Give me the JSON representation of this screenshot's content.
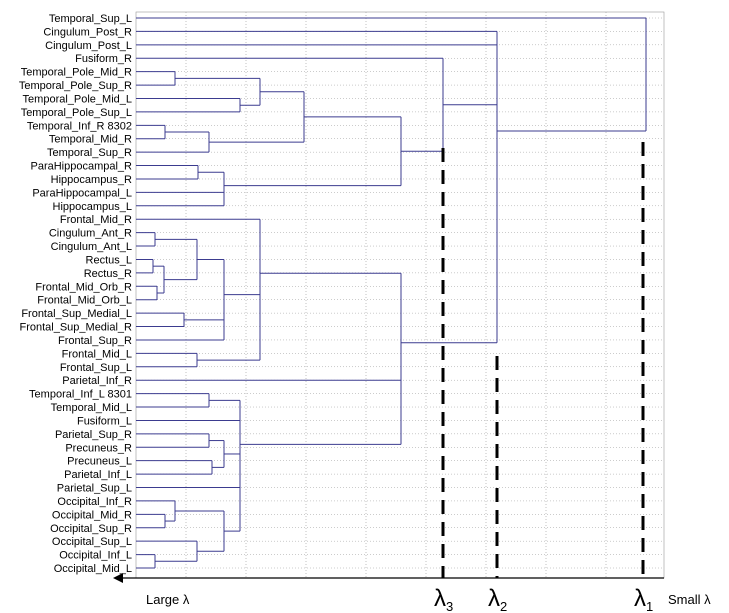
{
  "chart_data": {
    "type": "dendrogram",
    "orientation": "left-to-right",
    "x_axis": {
      "left_label": "Large λ",
      "right_label": "Small λ",
      "arrow": "left",
      "grid": true
    },
    "leaves": [
      "Temporal_Sup_L",
      "Cingulum_Post_R",
      "Cingulum_Post_L",
      "Fusiform_R",
      "Temporal_Pole_Mid_R",
      "Temporal_Pole_Sup_R",
      "Temporal_Pole_Mid_L",
      "Temporal_Pole_Sup_L",
      "Temporal_Inf_R 8302",
      "Temporal_Mid_R",
      "Temporal_Sup_R",
      "ParaHippocampal_R",
      "Hippocampus_R",
      "ParaHippocampal_L",
      "Hippocampus_L",
      "Frontal_Mid_R",
      "Cingulum_Ant_R",
      "Cingulum_Ant_L",
      "Rectus_L",
      "Rectus_R",
      "Frontal_Mid_Orb_R",
      "Frontal_Mid_Orb_L",
      "Frontal_Sup_Medial_L",
      "Frontal_Sup_Medial_R",
      "Frontal_Sup_R",
      "Frontal_Mid_L",
      "Frontal_Sup_L",
      "Parietal_Inf_R",
      "Temporal_Inf_L 8301",
      "Temporal_Mid_L",
      "Fusiform_L",
      "Parietal_Sup_R",
      "Precuneus_R",
      "Precuneus_L",
      "Parietal_Inf_L",
      "Parietal_Sup_L",
      "Occipital_Inf_R",
      "Occipital_Mid_R",
      "Occipital_Sup_R",
      "Occipital_Sup_L",
      "Occipital_Inf_L",
      "Occipital_Mid_L"
    ],
    "merges": [
      {
        "children": [
          "Temporal_Pole_Mid_R",
          "Temporal_Pole_Sup_R"
        ],
        "height": 0.07
      },
      {
        "children": [
          "Temporal_Pole_Mid_L",
          "Temporal_Pole_Sup_L"
        ],
        "height": 0.14
      },
      {
        "children": [
          "Temporal_Inf_R 8302",
          "Temporal_Mid_R"
        ],
        "height": 0.07
      },
      {
        "children": [
          "ParaHippocampal_R",
          "Hippocampus_R"
        ],
        "height": 0.07
      },
      {
        "children": [
          "ParaHippocampal_L",
          "Hippocampus_L"
        ],
        "height": 0.12
      },
      {
        "children": [
          "Cingulum_Ant_R",
          "Cingulum_Ant_L"
        ],
        "height": 0.0
      },
      {
        "children": [
          "Rectus_L",
          "Rectus_R"
        ],
        "height": 0.0
      },
      {
        "children": [
          "Frontal_Mid_Orb_R",
          "Frontal_Mid_Orb_L"
        ],
        "height": 0.0
      },
      {
        "children": [
          "Frontal_Sup_Medial_L",
          "Frontal_Sup_Medial_R"
        ],
        "height": 0.05
      },
      {
        "children": [
          "Frontal_Mid_L",
          "Frontal_Sup_L"
        ],
        "height": 0.08
      },
      {
        "children": [
          "Temporal_Inf_L 8301",
          "Temporal_Mid_L"
        ],
        "height": 0.1
      },
      {
        "children": [
          "Parietal_Sup_R",
          "Precuneus_R"
        ],
        "height": 0.12
      },
      {
        "children": [
          "Precuneus_L",
          "Parietal_Inf_L"
        ],
        "height": 0.11
      },
      {
        "children": [
          "Occipital_Mid_R",
          "Occipital_Sup_R"
        ],
        "height": 0.04
      },
      {
        "children": [
          "Occipital_Inf_L",
          "Occipital_Mid_L"
        ],
        "height": 0.0
      }
    ],
    "cut_markers": [
      {
        "label": "λ",
        "subscript": "3",
        "dashed": true
      },
      {
        "label": "λ",
        "subscript": "2",
        "dashed": true
      },
      {
        "label": "λ",
        "subscript": "1",
        "dashed": true
      }
    ],
    "colors": {
      "tree": "#3b3b8f",
      "grid": "#9a9a9a",
      "axis": "#000000",
      "markers": "#000000"
    }
  }
}
